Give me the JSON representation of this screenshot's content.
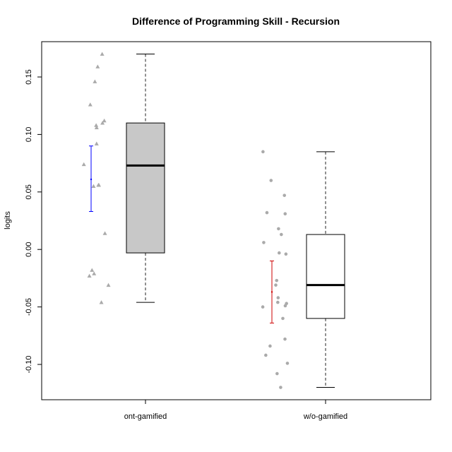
{
  "chart_data": {
    "type": "box",
    "title": "Difference of Programming Skill - Recursion",
    "xlabel": "",
    "ylabel": "logits",
    "ylim": [
      -0.131,
      0.18
    ],
    "yticks": [
      0.15,
      0.1,
      0.05,
      0.0,
      -0.05,
      -0.1
    ],
    "ytick_labels": [
      "0.15",
      "0.10",
      "0.05",
      "0.00",
      "-0.05",
      "-0.10"
    ],
    "categories": [
      "ont-gamified",
      "w/o-gamified"
    ],
    "colors": {
      "box_fill": [
        "#c8c8c8",
        "#ffffff"
      ],
      "points": "#aaaaaa",
      "ci": [
        "#0000ff",
        "#cc0000"
      ]
    },
    "groups": [
      {
        "name": "ont-gamified",
        "box": {
          "min": -0.046,
          "q1": -0.003,
          "median": 0.073,
          "q3": 0.11,
          "max": 0.17
        },
        "ci": {
          "mean": 0.061,
          "lower": 0.033,
          "upper": 0.09
        },
        "point_marker": "triangle",
        "points": [
          0.17,
          0.159,
          0.146,
          0.126,
          0.112,
          0.11,
          0.108,
          0.106,
          0.092,
          0.074,
          0.056,
          0.056,
          0.055,
          0.014,
          -0.018,
          -0.021,
          -0.023,
          -0.031,
          -0.046
        ]
      },
      {
        "name": "w/o-gamified",
        "box": {
          "min": -0.12,
          "q1": -0.06,
          "median": -0.031,
          "q3": 0.013,
          "max": 0.085
        },
        "ci": {
          "mean": -0.037,
          "lower": -0.064,
          "upper": -0.01
        },
        "point_marker": "circle",
        "points": [
          0.085,
          0.06,
          0.047,
          0.032,
          0.031,
          0.018,
          0.013,
          0.006,
          -0.003,
          -0.004,
          -0.027,
          -0.031,
          -0.042,
          -0.046,
          -0.047,
          -0.049,
          -0.05,
          -0.06,
          -0.078,
          -0.084,
          -0.092,
          -0.099,
          -0.108,
          -0.12
        ]
      }
    ]
  }
}
